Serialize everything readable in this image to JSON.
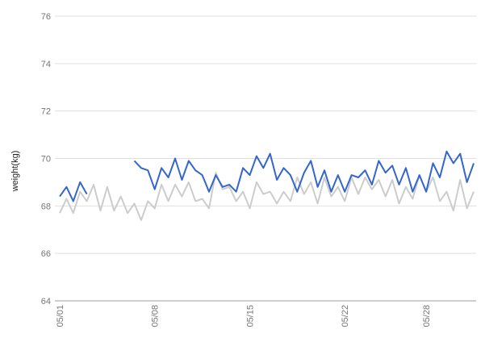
{
  "chart_data": {
    "type": "line",
    "ylabel": "weight(kg)",
    "xlabel": "",
    "ylim": [
      64,
      76
    ],
    "yticks": [
      "64",
      "66",
      "68",
      "70",
      "72",
      "74",
      "76"
    ],
    "grid": "horizontal",
    "x_start": "05/01",
    "x_end": "05/31",
    "x_step": "0.5 day",
    "xticks": [
      {
        "label": "05/01",
        "day": 1
      },
      {
        "label": "05/08",
        "day": 8
      },
      {
        "label": "05/15",
        "day": 15
      },
      {
        "label": "05/22",
        "day": 22
      },
      {
        "label": "05/28",
        "day": 28
      }
    ],
    "series": [
      {
        "color": "#3366cc",
        "values": [
          68.4,
          68.8,
          68.2,
          69.0,
          68.5,
          null,
          null,
          null,
          null,
          null,
          null,
          69.9,
          69.6,
          69.5,
          68.7,
          69.6,
          69.2,
          70.0,
          69.1,
          69.9,
          69.5,
          69.3,
          68.6,
          69.3,
          68.8,
          68.9,
          68.6,
          69.6,
          69.3,
          70.1,
          69.6,
          70.2,
          69.1,
          69.6,
          69.3,
          68.6,
          69.4,
          69.9,
          68.8,
          69.5,
          68.6,
          69.3,
          68.6,
          69.3,
          69.2,
          69.5,
          68.9,
          69.9,
          69.4,
          69.7,
          68.9,
          69.6,
          68.6,
          69.3,
          68.6,
          69.8,
          69.2,
          70.3,
          69.8,
          70.2,
          69.0,
          69.8
        ]
      },
      {
        "color": "#cccccc",
        "values": [
          67.7,
          68.3,
          67.7,
          68.6,
          68.2,
          68.9,
          67.8,
          68.8,
          67.8,
          68.4,
          67.7,
          68.1,
          67.4,
          68.2,
          67.9,
          68.9,
          68.2,
          68.9,
          68.4,
          69.0,
          68.2,
          68.3,
          67.9,
          69.4,
          68.7,
          68.8,
          68.2,
          68.6,
          67.9,
          69.0,
          68.5,
          68.6,
          68.1,
          68.6,
          68.2,
          69.2,
          68.5,
          69.0,
          68.1,
          69.2,
          68.4,
          68.8,
          68.2,
          69.2,
          68.5,
          69.2,
          68.7,
          69.1,
          68.4,
          69.1,
          68.1,
          68.8,
          68.3,
          69.3,
          68.6,
          69.2,
          68.2,
          68.6,
          67.8,
          69.1,
          67.9,
          68.6
        ]
      }
    ]
  }
}
